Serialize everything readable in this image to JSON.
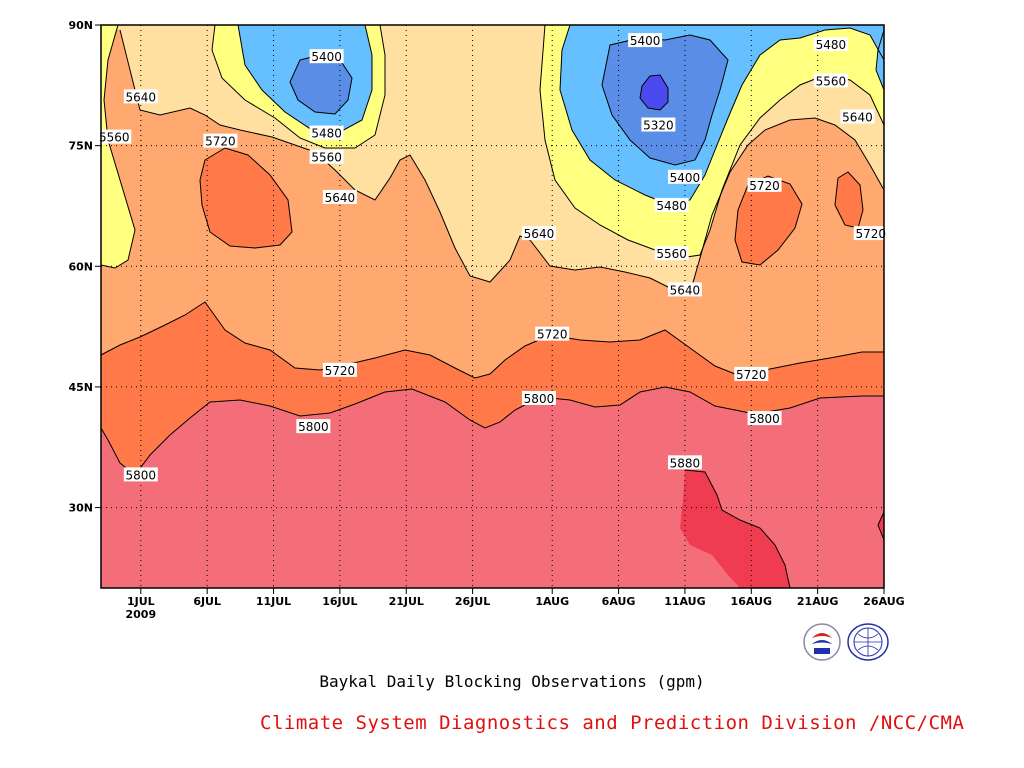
{
  "chart_data": {
    "type": "contour",
    "title": "Baykal Daily Blocking Observations (gpm)",
    "credit": "Climate System Diagnostics and Prediction Division /NCC/CMA",
    "x_ticks": [
      "1JUL",
      "6JUL",
      "11JUL",
      "16JUL",
      "21JUL",
      "26JUL",
      "1AUG",
      "6AUG",
      "11AUG",
      "16AUG",
      "21AUG",
      "26AUG"
    ],
    "x_year_label": "2009",
    "x_range": [
      "2009-06-28",
      "2009-08-26"
    ],
    "y_ticks": [
      "30N",
      "45N",
      "60N",
      "75N",
      "90N"
    ],
    "y_tick_values": [
      30,
      45,
      60,
      75,
      90
    ],
    "y_range": [
      20,
      90
    ],
    "contour_levels": [
      5320,
      5400,
      5480,
      5560,
      5640,
      5720,
      5800,
      5880
    ],
    "fill_colors": {
      "lt5320": "#4a4aee",
      "5320_5400": "#5a8ee6",
      "5400_5480": "#66c0ff",
      "5480_5560": "#ffff80",
      "5560_5640": "#ffe0a0",
      "5640_5720": "#ffa870",
      "5720_5800": "#ff7a48",
      "5800_5880": "#f46e7a",
      "gt5880": "#f03c50"
    },
    "contour_labels": [
      {
        "value": "5400",
        "date": "2009-07-15",
        "lat": 86.0
      },
      {
        "value": "5640",
        "date": "2009-07-01",
        "lat": 81.0
      },
      {
        "value": "5560",
        "date": "2009-06-29",
        "lat": 76.0
      },
      {
        "value": "5720",
        "date": "2009-07-07",
        "lat": 75.5
      },
      {
        "value": "5480",
        "date": "2009-07-15",
        "lat": 76.5
      },
      {
        "value": "5560",
        "date": "2009-07-15",
        "lat": 73.5
      },
      {
        "value": "5640",
        "date": "2009-07-16",
        "lat": 68.5
      },
      {
        "value": "5640",
        "date": "2009-07-31",
        "lat": 64.0
      },
      {
        "value": "5400",
        "date": "2009-08-08",
        "lat": 88.0
      },
      {
        "value": "5320",
        "date": "2009-08-09",
        "lat": 77.5
      },
      {
        "value": "5400",
        "date": "2009-08-11",
        "lat": 71.0
      },
      {
        "value": "5480",
        "date": "2009-08-10",
        "lat": 67.5
      },
      {
        "value": "5560",
        "date": "2009-08-10",
        "lat": 61.5
      },
      {
        "value": "5640",
        "date": "2009-08-11",
        "lat": 57.0
      },
      {
        "value": "5480",
        "date": "2009-08-22",
        "lat": 87.5
      },
      {
        "value": "5560",
        "date": "2009-08-22",
        "lat": 83.0
      },
      {
        "value": "5640",
        "date": "2009-08-24",
        "lat": 78.5
      },
      {
        "value": "5720",
        "date": "2009-08-17",
        "lat": 70.0
      },
      {
        "value": "5720",
        "date": "2009-08-25",
        "lat": 64.0
      },
      {
        "value": "5720",
        "date": "2009-08-01",
        "lat": 51.5
      },
      {
        "value": "5720",
        "date": "2009-07-16",
        "lat": 47.0
      },
      {
        "value": "5720",
        "date": "2009-08-16",
        "lat": 46.5
      },
      {
        "value": "5800",
        "date": "2009-07-31",
        "lat": 43.5
      },
      {
        "value": "5800",
        "date": "2009-07-14",
        "lat": 40.0
      },
      {
        "value": "5800",
        "date": "2009-08-17",
        "lat": 41.0
      },
      {
        "value": "5800",
        "date": "2009-07-01",
        "lat": 34.0
      },
      {
        "value": "5880",
        "date": "2009-08-11",
        "lat": 35.5
      }
    ]
  }
}
